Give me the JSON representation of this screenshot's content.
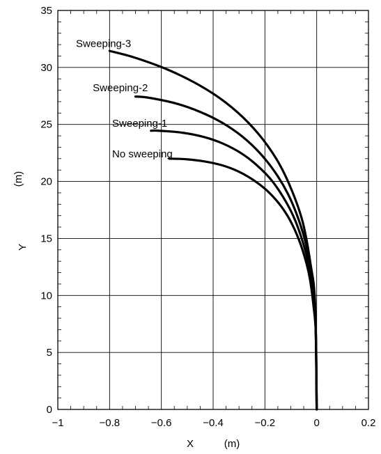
{
  "chart_data": {
    "type": "line",
    "title": "",
    "xlabel": "X",
    "xunit": "(m)",
    "ylabel": "Y",
    "yunit": "(m)",
    "xlim": [
      -1,
      0.2
    ],
    "ylim": [
      0,
      35
    ],
    "xticks": [
      -1,
      -0.8,
      -0.6,
      -0.4,
      -0.2,
      0,
      0.2
    ],
    "xtick_labels": [
      "−1",
      "−0.8",
      "−0.6",
      "−0.4",
      "−0.2",
      "0",
      "0.2"
    ],
    "yticks": [
      0,
      5,
      10,
      15,
      20,
      25,
      30,
      35
    ],
    "ytick_labels": [
      "0",
      "5",
      "10",
      "15",
      "20",
      "25",
      "30",
      "35"
    ],
    "grid": true,
    "legend": "none",
    "series_color": "#000000",
    "series": [
      {
        "name": "No sweeping",
        "x": [
          0,
          -0.003,
          -0.012,
          -0.027,
          -0.048,
          -0.075,
          -0.108,
          -0.147,
          -0.192,
          -0.243,
          -0.3,
          -0.363,
          -0.432,
          -0.507,
          -0.57
        ],
        "y": [
          0,
          6.48,
          9.02,
          11.55,
          13.5,
          15.25,
          16.8,
          18.1,
          19.2,
          20.1,
          20.85,
          21.4,
          21.75,
          21.95,
          22.0
        ]
      },
      {
        "name": "Sweeping-1",
        "x": [
          0,
          -0.004,
          -0.015,
          -0.032,
          -0.058,
          -0.09,
          -0.13,
          -0.176,
          -0.23,
          -0.29,
          -0.36,
          -0.436,
          -0.52,
          -0.61,
          -0.64
        ],
        "y": [
          0,
          7.2,
          10.0,
          12.8,
          15.0,
          16.95,
          18.65,
          20.15,
          21.4,
          22.45,
          23.3,
          23.9,
          24.28,
          24.45,
          24.45
        ]
      },
      {
        "name": "Sweeping-2",
        "x": [
          0,
          -0.005,
          -0.018,
          -0.04,
          -0.072,
          -0.112,
          -0.162,
          -0.22,
          -0.288,
          -0.365,
          -0.45,
          -0.545,
          -0.65,
          -0.7
        ],
        "y": [
          0,
          8.05,
          11.2,
          14.35,
          16.8,
          18.95,
          20.85,
          22.5,
          23.95,
          25.15,
          26.1,
          26.85,
          27.35,
          27.45
        ]
      },
      {
        "name": "Sweeping-3",
        "x": [
          0,
          -0.006,
          -0.024,
          -0.053,
          -0.094,
          -0.146,
          -0.21,
          -0.286,
          -0.374,
          -0.474,
          -0.585,
          -0.708,
          -0.8
        ],
        "y": [
          0,
          9.2,
          12.8,
          16.35,
          19.1,
          21.6,
          23.75,
          25.65,
          27.3,
          28.7,
          29.9,
          30.9,
          31.45
        ]
      }
    ],
    "series_labels": [
      {
        "text": "No sweeping",
        "x": -0.79,
        "y": 22.1
      },
      {
        "text": "Sweeping-1",
        "x": -0.79,
        "y": 24.8
      },
      {
        "text": "Sweeping-2",
        "x": -0.865,
        "y": 27.9
      },
      {
        "text": "Sweeping-3",
        "x": -0.93,
        "y": 31.8
      }
    ]
  }
}
